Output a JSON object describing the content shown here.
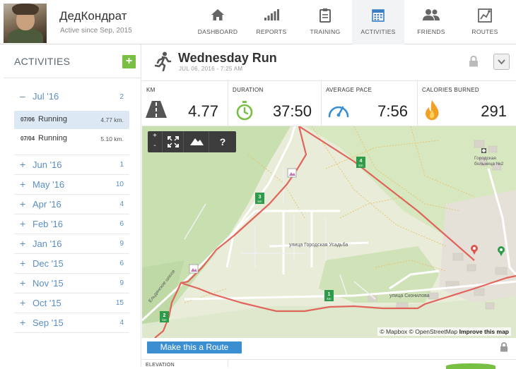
{
  "user": {
    "name": "ДедКондрат",
    "since": "Active since Sep, 2015"
  },
  "nav": [
    {
      "label": "DASHBOARD",
      "icon": "home-icon"
    },
    {
      "label": "REPORTS",
      "icon": "bar-chart-icon"
    },
    {
      "label": "TRAINING",
      "icon": "clipboard-icon"
    },
    {
      "label": "ACTIVITIES",
      "icon": "calendar-icon",
      "active": true
    },
    {
      "label": "FRIENDS",
      "icon": "people-icon"
    },
    {
      "label": "ROUTES",
      "icon": "map-route-icon"
    }
  ],
  "sidebar": {
    "title": "ACTIVITIES",
    "add_label": "+",
    "open_month": {
      "sign": "–",
      "name": "Jul '16",
      "count": "2"
    },
    "runs": [
      {
        "date": "07/06",
        "type": "Running",
        "km": "4.77 km."
      },
      {
        "date": "07/04",
        "type": "Running",
        "km": "5.10 km."
      }
    ],
    "months": [
      {
        "sign": "+",
        "name": "Jun '16",
        "count": "1"
      },
      {
        "sign": "+",
        "name": "May '16",
        "count": "10"
      },
      {
        "sign": "+",
        "name": "Apr '16",
        "count": "4"
      },
      {
        "sign": "+",
        "name": "Feb '16",
        "count": "6"
      },
      {
        "sign": "+",
        "name": "Jan '16",
        "count": "9"
      },
      {
        "sign": "+",
        "name": "Dec '15",
        "count": "6"
      },
      {
        "sign": "+",
        "name": "Nov '15",
        "count": "9"
      },
      {
        "sign": "+",
        "name": "Oct '15",
        "count": "15"
      },
      {
        "sign": "+",
        "name": "Sep '15",
        "count": "4"
      }
    ]
  },
  "activity": {
    "title": "Wednesday Run",
    "date": "JUL 06, 2016  -  7:25 AM"
  },
  "stats": {
    "km": {
      "label": "KM",
      "value": "4.77"
    },
    "duration": {
      "label": "DURATION",
      "value": "37:50"
    },
    "pace": {
      "label": "AVERAGE PACE",
      "value": "7:56"
    },
    "calories": {
      "label": "CALORIES BURNED",
      "value": "291"
    }
  },
  "map": {
    "zoom_in": "+",
    "zoom_out": "-",
    "help": "?",
    "km_markers": [
      "1",
      "2",
      "3",
      "4"
    ],
    "km_unit": "km",
    "street_1": "улица Городская Усадьба",
    "street_2": "улица Сконилова",
    "street_3": "Ельдинское шоссе",
    "hospital_1": "Городская",
    "hospital_2": "больница №2",
    "attribution_a": "© Mapbox",
    "attribution_b": "© OpenStreetMap",
    "attribution_c": "Improve this map"
  },
  "route_button": "Make this a Route",
  "bottom_label": "ELEVATION",
  "colors": {
    "accent_green": "#78c043",
    "link_blue": "#5a8ec4",
    "route_red": "#e0564f",
    "button_blue": "#3b8fd1"
  }
}
